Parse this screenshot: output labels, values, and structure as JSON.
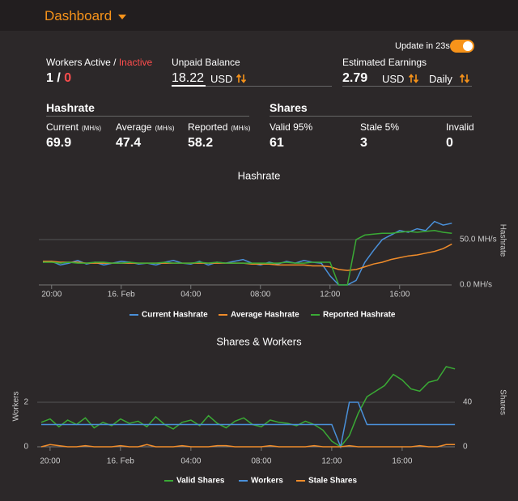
{
  "header": {
    "title": "Dashboard"
  },
  "update": {
    "label": "Update in 23s"
  },
  "workers": {
    "label": "Workers Active /",
    "inactive_label": "Inactive",
    "active": 1,
    "separator": "/",
    "inactive": 0
  },
  "unpaid_balance": {
    "label": "Unpaid Balance",
    "value": 18.22,
    "currency": "USD"
  },
  "estimated_earnings": {
    "label": "Estimated Earnings",
    "value": 2.79,
    "currency": "USD",
    "period": "Daily"
  },
  "hashrate": {
    "title": "Hashrate",
    "items": [
      {
        "label": "Current",
        "unit": "(MH/s)",
        "value": 69.9
      },
      {
        "label": "Average",
        "unit": "(MH/s)",
        "value": 47.4
      },
      {
        "label": "Reported",
        "unit": "(MH/s)",
        "value": 58.2
      }
    ]
  },
  "shares": {
    "title": "Shares",
    "items": [
      {
        "label": "Valid 95%",
        "value": 61
      },
      {
        "label": "Stale 5%",
        "value": 3
      },
      {
        "label": "Invalid",
        "value": 0
      }
    ]
  },
  "chart_data": [
    {
      "type": "line",
      "title": "Hashrate",
      "y2label": "Hashrate",
      "categories": [
        null,
        "20:00",
        null,
        null,
        null,
        null,
        null,
        null,
        null,
        "16. Feb",
        null,
        null,
        null,
        null,
        null,
        null,
        null,
        "04:00",
        null,
        null,
        null,
        null,
        null,
        null,
        null,
        "08:00",
        null,
        null,
        null,
        null,
        null,
        null,
        null,
        "12:00",
        null,
        null,
        null,
        null,
        null,
        null,
        null,
        "16:00",
        null,
        null,
        null,
        null,
        null,
        null
      ],
      "y2lim": [
        0,
        100
      ],
      "y2ticks": [
        {
          "value": 0,
          "label": "0.0 MH/s"
        },
        {
          "value": 50,
          "label": "50.0 MH/s"
        }
      ],
      "grid": true,
      "legend": "bottom",
      "series": [
        {
          "name": "Current Hashrate",
          "color": "#4a90d9",
          "axis": "y2",
          "values": [
            25,
            26,
            22,
            24,
            27,
            23,
            25,
            22,
            24,
            26,
            25,
            23,
            24,
            22,
            25,
            27,
            24,
            23,
            26,
            22,
            25,
            24,
            26,
            28,
            24,
            22,
            25,
            23,
            26,
            24,
            27,
            25,
            24,
            10,
            0,
            0,
            5,
            25,
            38,
            50,
            55,
            60,
            58,
            62,
            60,
            70,
            66,
            68
          ]
        },
        {
          "name": "Average Hashrate",
          "color": "#f08c2a",
          "axis": "y2",
          "values": [
            26,
            26,
            25,
            25,
            25,
            24,
            24,
            24,
            24,
            24,
            24,
            24,
            24,
            24,
            24,
            24,
            24,
            24,
            24,
            24,
            24,
            24,
            24,
            24,
            23,
            23,
            23,
            22,
            22,
            22,
            22,
            21,
            21,
            20,
            17,
            16,
            17,
            20,
            23,
            25,
            28,
            30,
            32,
            33,
            35,
            37,
            40,
            45
          ]
        },
        {
          "name": "Reported Hashrate",
          "color": "#3aaa35",
          "axis": "y2",
          "values": [
            25,
            25,
            24,
            25,
            24,
            24,
            25,
            25,
            24,
            24,
            25,
            24,
            24,
            24,
            25,
            24,
            24,
            24,
            25,
            24,
            25,
            24,
            24,
            24,
            24,
            24,
            24,
            24,
            25,
            24,
            24,
            25,
            25,
            25,
            0,
            0,
            50,
            55,
            56,
            57,
            57,
            58,
            59,
            58,
            59,
            60,
            58,
            57
          ]
        }
      ]
    },
    {
      "type": "line",
      "title": "Shares & Workers",
      "ylabel": "Workers",
      "y2label": "Shares",
      "categories": [
        null,
        "20:00",
        null,
        null,
        null,
        null,
        null,
        null,
        null,
        "16. Feb",
        null,
        null,
        null,
        null,
        null,
        null,
        null,
        "04:00",
        null,
        null,
        null,
        null,
        null,
        null,
        null,
        "08:00",
        null,
        null,
        null,
        null,
        null,
        null,
        null,
        "12:00",
        null,
        null,
        null,
        null,
        null,
        null,
        null,
        "16:00",
        null,
        null,
        null,
        null,
        null,
        null
      ],
      "ylim": [
        0,
        4
      ],
      "yticks": [
        0,
        2
      ],
      "y2lim": [
        0,
        80
      ],
      "y2ticks": [
        0,
        40
      ],
      "grid": true,
      "legend": "bottom",
      "series": [
        {
          "name": "Valid Shares",
          "color": "#3aaa35",
          "axis": "y2",
          "values": [
            22,
            25,
            18,
            24,
            20,
            26,
            17,
            22,
            19,
            25,
            21,
            23,
            18,
            27,
            20,
            16,
            22,
            24,
            19,
            28,
            21,
            17,
            23,
            26,
            20,
            18,
            24,
            22,
            21,
            19,
            23,
            20,
            15,
            5,
            0,
            10,
            30,
            45,
            50,
            55,
            65,
            60,
            52,
            50,
            58,
            60,
            72,
            70
          ]
        },
        {
          "name": "Workers",
          "color": "#4a90d9",
          "axis": "y",
          "values": [
            1,
            1,
            1,
            1,
            1,
            1,
            1,
            1,
            1,
            1,
            1,
            1,
            1,
            1,
            1,
            1,
            1,
            1,
            1,
            1,
            1,
            1,
            1,
            1,
            1,
            1,
            1,
            1,
            1,
            1,
            1,
            1,
            1,
            1,
            0,
            2,
            2,
            1,
            1,
            1,
            1,
            1,
            1,
            1,
            1,
            1,
            1,
            1
          ]
        },
        {
          "name": "Stale Shares",
          "color": "#f08c2a",
          "axis": "y2",
          "values": [
            0,
            2,
            1,
            0,
            0,
            1,
            0,
            0,
            0,
            1,
            0,
            0,
            2,
            0,
            0,
            0,
            1,
            0,
            0,
            0,
            1,
            1,
            0,
            0,
            0,
            0,
            1,
            0,
            0,
            0,
            0,
            1,
            0,
            0,
            0,
            1,
            0,
            0,
            0,
            0,
            0,
            0,
            0,
            1,
            0,
            0,
            2,
            2
          ]
        }
      ]
    }
  ]
}
